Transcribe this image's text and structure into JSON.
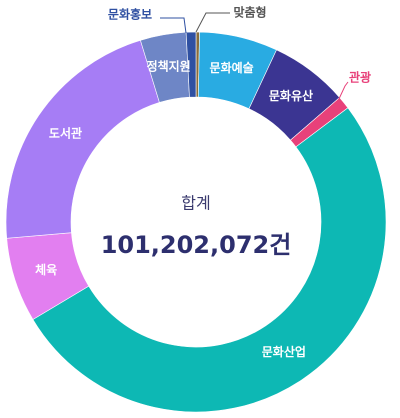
{
  "chart_data": {
    "type": "donut",
    "center_title": "합계",
    "center_total": "101,202,072건",
    "categories": [
      "맞춤형",
      "문화예술",
      "문화유산",
      "관광",
      "문화산업",
      "체육",
      "도서관",
      "정책지원",
      "문화홍보"
    ],
    "values": [
      300000,
      6750000,
      6750000,
      1120000,
      52300000,
      7300000,
      21900000,
      3940000,
      840000
    ],
    "colors": [
      "#8a6d3b",
      "#29abe2",
      "#3b3592",
      "#e8417a",
      "#0db8b4",
      "#e27ff0",
      "#a67df5",
      "#6e86c6",
      "#2f50a2"
    ]
  }
}
